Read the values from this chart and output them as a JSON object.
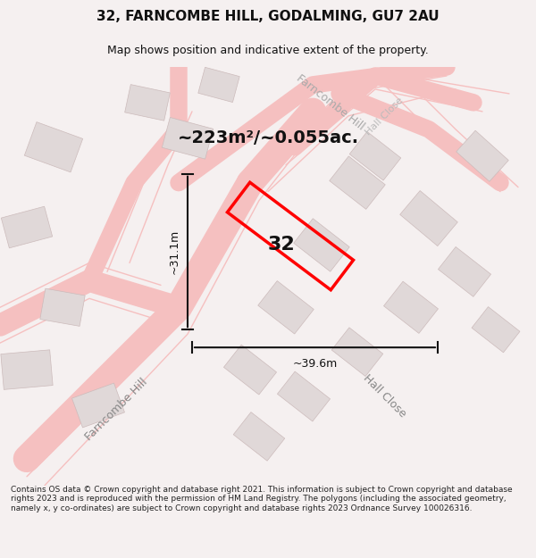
{
  "title": "32, FARNCOMBE HILL, GODALMING, GU7 2AU",
  "subtitle": "Map shows position and indicative extent of the property.",
  "area_text": "~223m²/~0.055ac.",
  "plot_number": "32",
  "dim_width": "~39.6m",
  "dim_height": "~31.1m",
  "footer_text": "Contains OS data © Crown copyright and database right 2021. This information is subject to Crown copyright and database rights 2023 and is reproduced with the permission of HM Land Registry. The polygons (including the associated geometry, namely x, y co-ordinates) are subject to Crown copyright and database rights 2023 Ordnance Survey 100026316.",
  "bg_color": "#f5f0f0",
  "map_bg": "#ffffff",
  "road_color": "#f5c0c0",
  "building_color": "#e0d8d8",
  "plot_color": "#ff0000",
  "dim_color": "#111111",
  "text_color": "#333333",
  "title_color": "#111111",
  "street_label1": "Farncombe Hill",
  "street_label2": "Hall Close"
}
